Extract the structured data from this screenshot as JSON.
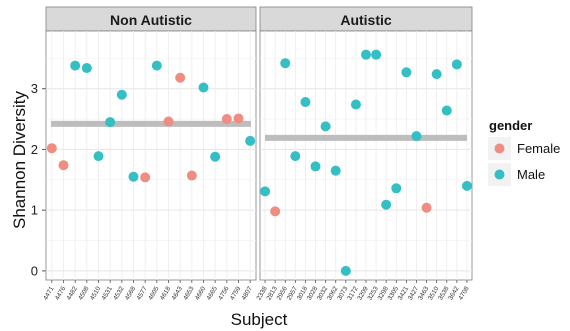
{
  "chart_data": {
    "type": "scatter",
    "xlabel": "Subject",
    "ylabel": "Shannon Diversity",
    "ylim": [
      -0.15,
      3.95
    ],
    "yticks": [
      0,
      1,
      2,
      3
    ],
    "grid": true,
    "legend_position": "right",
    "legend": {
      "title": "gender",
      "entries": [
        {
          "label": "Female",
          "color": "#F08C82"
        },
        {
          "label": "Male",
          "color": "#33BFC4"
        }
      ]
    },
    "mean_line_color": "#BDBDBD",
    "panels": [
      {
        "title": "Non Autistic",
        "mean": 2.42,
        "categories": [
          "4471",
          "4476",
          "4482",
          "4508",
          "4510",
          "4531",
          "4532",
          "4568",
          "4577",
          "4605",
          "4618",
          "4643",
          "4653",
          "4660",
          "4665",
          "4756",
          "4759",
          "4807"
        ],
        "points": [
          {
            "x": "4471",
            "y": 2.02,
            "gender": "Female"
          },
          {
            "x": "4476",
            "y": 1.74,
            "gender": "Female"
          },
          {
            "x": "4482",
            "y": 3.38,
            "gender": "Male"
          },
          {
            "x": "4508",
            "y": 3.34,
            "gender": "Male"
          },
          {
            "x": "4510",
            "y": 1.89,
            "gender": "Male"
          },
          {
            "x": "4531",
            "y": 2.45,
            "gender": "Male"
          },
          {
            "x": "4532",
            "y": 2.9,
            "gender": "Male"
          },
          {
            "x": "4568",
            "y": 1.55,
            "gender": "Male"
          },
          {
            "x": "4577",
            "y": 1.54,
            "gender": "Female"
          },
          {
            "x": "4605",
            "y": 3.38,
            "gender": "Male"
          },
          {
            "x": "4618",
            "y": 2.46,
            "gender": "Female"
          },
          {
            "x": "4643",
            "y": 3.18,
            "gender": "Female"
          },
          {
            "x": "4653",
            "y": 1.57,
            "gender": "Female"
          },
          {
            "x": "4660",
            "y": 3.02,
            "gender": "Male"
          },
          {
            "x": "4665",
            "y": 1.88,
            "gender": "Male"
          },
          {
            "x": "4756",
            "y": 2.5,
            "gender": "Female"
          },
          {
            "x": "4759",
            "y": 2.51,
            "gender": "Female"
          },
          {
            "x": "4807",
            "y": 2.14,
            "gender": "Male"
          }
        ]
      },
      {
        "title": "Autistic",
        "mean": 2.19,
        "categories": [
          "2338",
          "2813",
          "2956",
          "2957",
          "3018",
          "3028",
          "3032",
          "3062",
          "3073",
          "3172",
          "3209",
          "3253",
          "3298",
          "3305",
          "3421",
          "3427",
          "3463",
          "3510",
          "3538",
          "3642",
          "4708"
        ],
        "points": [
          {
            "x": "2338",
            "y": 1.31,
            "gender": "Male"
          },
          {
            "x": "2813",
            "y": 0.98,
            "gender": "Female"
          },
          {
            "x": "2956",
            "y": 3.42,
            "gender": "Male"
          },
          {
            "x": "2957",
            "y": 1.89,
            "gender": "Male"
          },
          {
            "x": "3018",
            "y": 2.78,
            "gender": "Male"
          },
          {
            "x": "3028",
            "y": 1.72,
            "gender": "Male"
          },
          {
            "x": "3032",
            "y": 2.38,
            "gender": "Male"
          },
          {
            "x": "3062",
            "y": 1.65,
            "gender": "Male"
          },
          {
            "x": "3073",
            "y": 0.0,
            "gender": "Male"
          },
          {
            "x": "3172",
            "y": 2.74,
            "gender": "Male"
          },
          {
            "x": "3209",
            "y": 3.56,
            "gender": "Male"
          },
          {
            "x": "3253",
            "y": 3.56,
            "gender": "Male"
          },
          {
            "x": "3298",
            "y": 1.09,
            "gender": "Male"
          },
          {
            "x": "3305",
            "y": 1.36,
            "gender": "Male"
          },
          {
            "x": "3421",
            "y": 3.27,
            "gender": "Male"
          },
          {
            "x": "3427",
            "y": 2.22,
            "gender": "Male"
          },
          {
            "x": "3463",
            "y": 1.04,
            "gender": "Female"
          },
          {
            "x": "3510",
            "y": 3.24,
            "gender": "Male"
          },
          {
            "x": "3538",
            "y": 2.64,
            "gender": "Male"
          },
          {
            "x": "3642",
            "y": 3.4,
            "gender": "Male"
          },
          {
            "x": "4708",
            "y": 1.4,
            "gender": "Male"
          }
        ]
      }
    ]
  }
}
